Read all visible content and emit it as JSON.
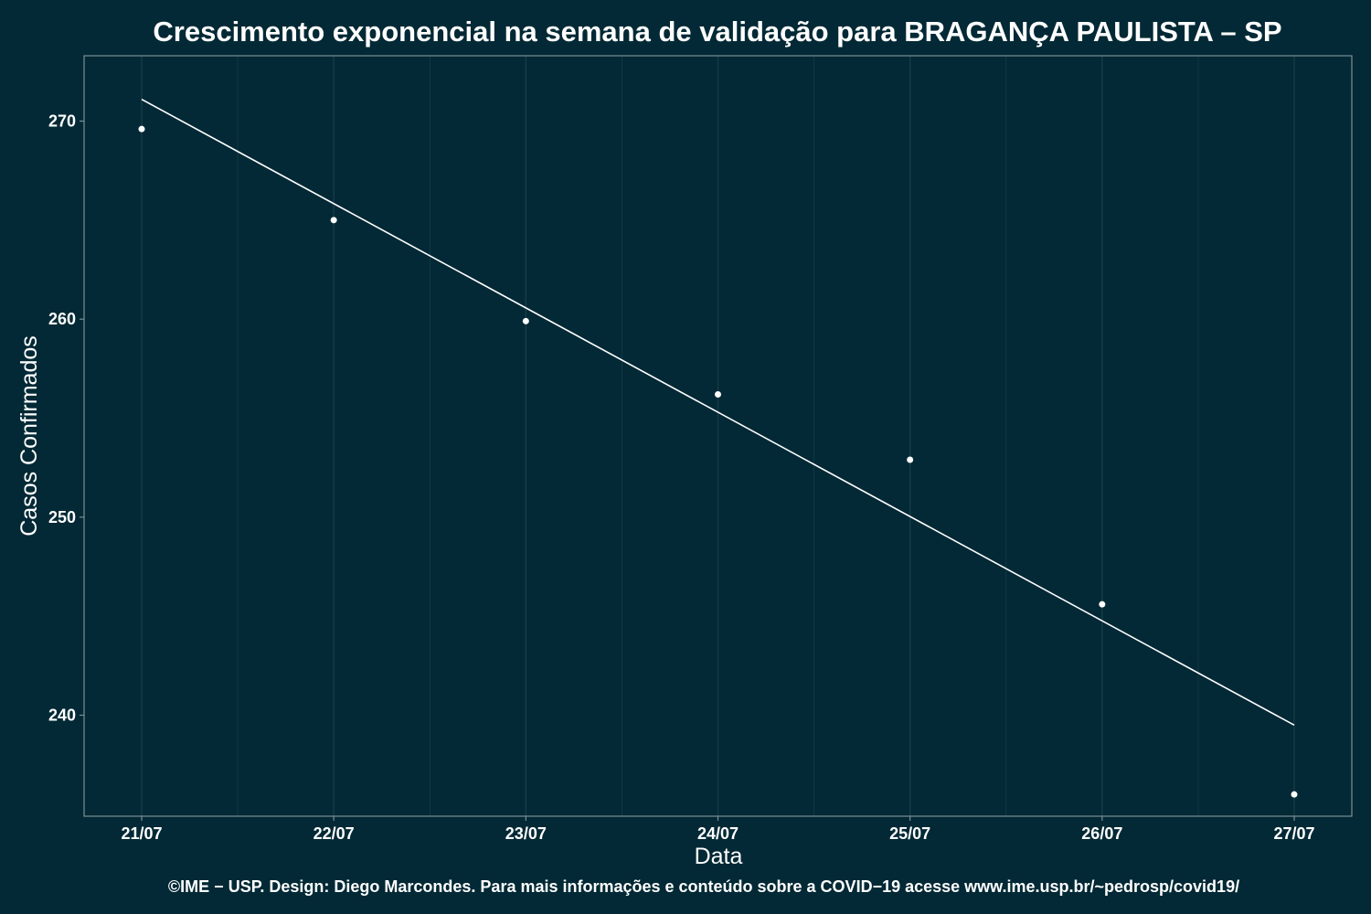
{
  "chart_data": {
    "type": "scatter",
    "title": "Crescimento exponencial na semana de validação para BRAGANÇA PAULISTA – SP",
    "xlabel": "Data",
    "ylabel": "Casos Confirmados",
    "caption": "©IME − USP. Design: Diego Marcondes. Para mais informações e conteúdo sobre a COVID−19 acesse www.ime.usp.br/~pedrosp/covid19/",
    "x": [
      "21/07",
      "22/07",
      "23/07",
      "24/07",
      "25/07",
      "26/07",
      "27/07"
    ],
    "y_ticks": [
      240,
      250,
      260,
      270
    ],
    "ylim": [
      234.9,
      273.3
    ],
    "grid": "vertical",
    "series": [
      {
        "values": [
          269.6,
          265.0,
          259.9,
          256.2,
          252.9,
          245.6,
          236.0
        ]
      }
    ],
    "trend_line": {
      "start": 271.1,
      "end": 239.5
    },
    "colors": {
      "background": "#022935",
      "grid": "#163c48",
      "axis": "#7a8f96",
      "points": "#ffffff",
      "line": "#ffffff",
      "text": "#ffffff"
    }
  }
}
